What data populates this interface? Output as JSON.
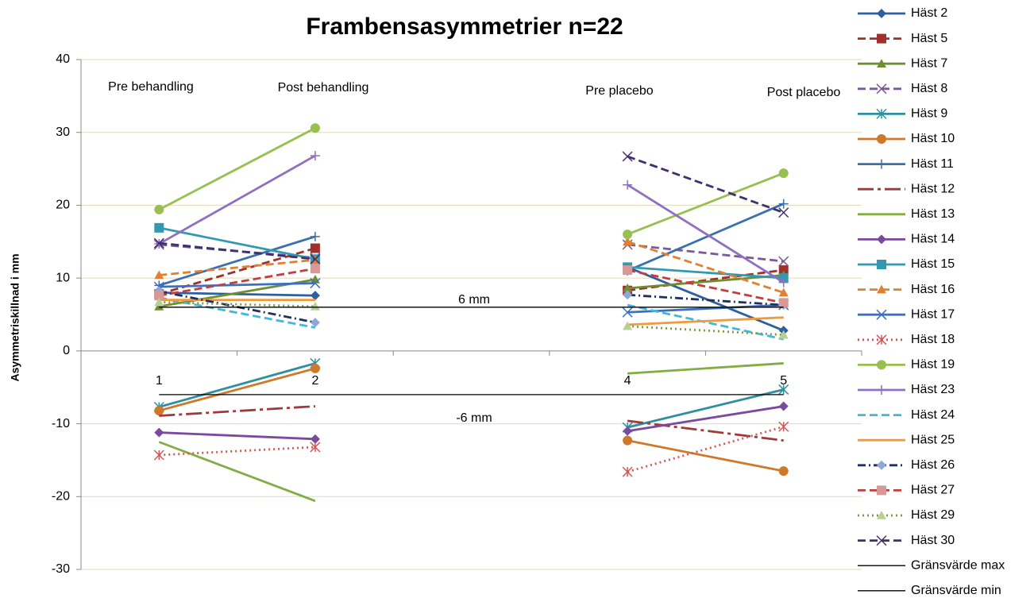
{
  "chart_data": {
    "type": "line",
    "title": "Frambensasymmetrier n=22",
    "y_label": "Asymmetriskillnad i mm",
    "annotations": [
      "Pre behandling",
      "Post behandling",
      "Pre placebo",
      "Post placebo",
      "6 mm",
      "-6 mm"
    ],
    "categories": [
      "1",
      "2",
      null,
      "4",
      "5"
    ],
    "ylim": [
      -30,
      40
    ],
    "yticks": [
      -30,
      -20,
      -10,
      0,
      10,
      20,
      30,
      40
    ],
    "grid": true,
    "legend": "right",
    "series": [
      {
        "name": "Häst 2",
        "color": "#2e5fa0",
        "marker": "diamond",
        "dash": "solid",
        "values": [
          8.0,
          7.6,
          null,
          11.5,
          2.8
        ]
      },
      {
        "name": "Häst 5",
        "color": "#a0302c",
        "marker": "square",
        "dash": "dash",
        "values": [
          7.8,
          14.1,
          null,
          8.3,
          11.1
        ]
      },
      {
        "name": "Häst 7",
        "color": "#6d8f32",
        "marker": "triangle",
        "dash": "solid",
        "values": [
          6.1,
          9.8,
          null,
          8.6,
          10.4
        ]
      },
      {
        "name": "Häst 8",
        "color": "#7a5a9a",
        "marker": "x",
        "dash": "dash",
        "values": [
          14.6,
          12.8,
          null,
          14.6,
          12.3
        ]
      },
      {
        "name": "Häst 9",
        "color": "#2f8fa0",
        "marker": "asterisk",
        "dash": "solid",
        "values": [
          -7.7,
          -1.7,
          null,
          -10.5,
          -5.3
        ]
      },
      {
        "name": "Häst 10",
        "color": "#d0782a",
        "marker": "circle",
        "dash": "solid",
        "values": [
          -8.2,
          -2.4,
          null,
          -12.3,
          -16.5
        ]
      },
      {
        "name": "Häst 11",
        "color": "#3a6fb0",
        "marker": "plus",
        "dash": "solid",
        "values": [
          9.0,
          15.7,
          null,
          11.0,
          20.2
        ]
      },
      {
        "name": "Häst 12",
        "color": "#a03a3a",
        "marker": "none",
        "dash": "longdash",
        "values": [
          -8.9,
          -7.6,
          null,
          -9.6,
          -12.3
        ]
      },
      {
        "name": "Häst 13",
        "color": "#82ad42",
        "marker": "none",
        "dash": "solid",
        "values": [
          -12.5,
          -20.6,
          null,
          -3.1,
          -1.7
        ]
      },
      {
        "name": "Häst 14",
        "color": "#7a4aa0",
        "marker": "diamond",
        "dash": "solid",
        "values": [
          -11.2,
          -12.1,
          null,
          -11.0,
          -7.6
        ]
      },
      {
        "name": "Häst 15",
        "color": "#3399b0",
        "marker": "square",
        "dash": "solid",
        "values": [
          16.9,
          12.6,
          null,
          11.5,
          10.0
        ]
      },
      {
        "name": "Häst 16",
        "color": "#e08030",
        "marker": "triangle",
        "dash": "dash",
        "values": [
          10.4,
          12.5,
          null,
          15.0,
          8.0
        ]
      },
      {
        "name": "Häst 17",
        "color": "#3a70c0",
        "marker": "x",
        "dash": "solid",
        "values": [
          8.8,
          9.3,
          null,
          5.3,
          6.3
        ]
      },
      {
        "name": "Häst 18",
        "color": "#d05858",
        "marker": "asterisk",
        "dash": "dot",
        "values": [
          -14.3,
          -13.2,
          null,
          -16.6,
          -10.4
        ]
      },
      {
        "name": "Häst 19",
        "color": "#98c050",
        "marker": "circle",
        "dash": "solid",
        "values": [
          19.4,
          30.6,
          null,
          16.0,
          24.4
        ]
      },
      {
        "name": "Häst 23",
        "color": "#9070c0",
        "marker": "plus",
        "dash": "solid",
        "values": [
          14.7,
          26.8,
          null,
          22.8,
          9.4
        ]
      },
      {
        "name": "Häst 24",
        "color": "#40b8d8",
        "marker": "none",
        "dash": "dash",
        "values": [
          7.3,
          3.2,
          null,
          6.3,
          1.6
        ]
      },
      {
        "name": "Häst 25",
        "color": "#f09a40",
        "marker": "none",
        "dash": "solid",
        "values": [
          7.0,
          7.0,
          null,
          3.6,
          4.6
        ]
      },
      {
        "name": "Häst 26",
        "color": "#203060",
        "marker": "diamond",
        "marker_color": "#90a8d8",
        "dash": "dashdot",
        "values": [
          8.2,
          3.9,
          null,
          7.7,
          6.3
        ]
      },
      {
        "name": "Häst 27",
        "color": "#c04040",
        "marker": "square",
        "marker_color": "#d89898",
        "dash": "dash",
        "values": [
          7.6,
          11.3,
          null,
          11.1,
          6.6
        ]
      },
      {
        "name": "Häst 29",
        "color": "#7a9a40",
        "marker": "triangle",
        "marker_color": "#b8d090",
        "dash": "dot",
        "values": [
          6.7,
          6.1,
          null,
          3.4,
          2.2
        ]
      },
      {
        "name": "Häst 30",
        "color": "#403070",
        "marker": "x",
        "dash": "dash",
        "values": [
          14.8,
          12.6,
          null,
          26.7,
          19.0
        ]
      },
      {
        "name": "Gränsvärde max",
        "color": "#000000",
        "marker": "none",
        "dash": "solid",
        "thin": true,
        "values": [
          6,
          6,
          6,
          6,
          6
        ]
      },
      {
        "name": "Gränsvärde min",
        "color": "#000000",
        "marker": "none",
        "dash": "solid",
        "thin": true,
        "values": [
          -6,
          -6,
          -6,
          -6,
          -6
        ]
      }
    ]
  }
}
